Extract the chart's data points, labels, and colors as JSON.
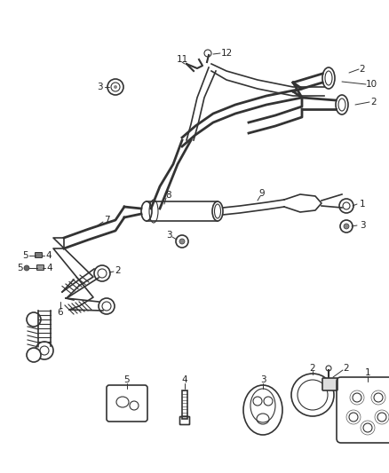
{
  "bg_color": "#ffffff",
  "line_color": "#333333",
  "figsize": [
    4.38,
    5.33
  ],
  "dpi": 100
}
